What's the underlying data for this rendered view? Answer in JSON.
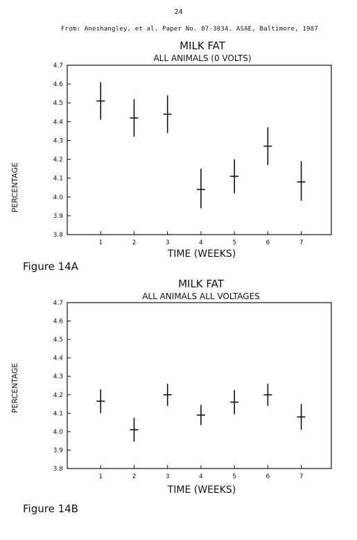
{
  "page": {
    "number": "24",
    "source": "From: Aneshangley, et al. Paper No. 87-3034. ASAE, Baltimore, 1987"
  },
  "chart_data": [
    {
      "type": "scatter",
      "title": "MILK FAT",
      "subtitle": "ALL ANIMALS (0 VOLTS)",
      "xlabel": "TIME (WEEKS)",
      "ylabel": "PERCENTAGE",
      "caption": "Figure 14A",
      "ylim": [
        3.8,
        4.7
      ],
      "xlim": [
        0,
        7.9
      ],
      "yticks": [
        "3.8",
        "3.9",
        "4.0",
        "4.1",
        "4.2",
        "4.3",
        "4.4",
        "4.5",
        "4.6",
        "4.7"
      ],
      "xticks": [
        "1",
        "2",
        "3",
        "4",
        "5",
        "6",
        "7"
      ],
      "grid": false,
      "points": [
        {
          "x": 1,
          "y": 4.51,
          "low": 4.41,
          "high": 4.61
        },
        {
          "x": 2,
          "y": 4.42,
          "low": 4.32,
          "high": 4.52
        },
        {
          "x": 3,
          "y": 4.44,
          "low": 4.34,
          "high": 4.54
        },
        {
          "x": 4,
          "y": 4.04,
          "low": 3.94,
          "high": 4.15
        },
        {
          "x": 5,
          "y": 4.11,
          "low": 4.02,
          "high": 4.2
        },
        {
          "x": 6,
          "y": 4.27,
          "low": 4.17,
          "high": 4.37
        },
        {
          "x": 7,
          "y": 4.08,
          "low": 3.98,
          "high": 4.19
        }
      ]
    },
    {
      "type": "scatter",
      "title": "MILK FAT",
      "subtitle": "ALL ANIMALS ALL VOLTAGES",
      "xlabel": "TIME (WEEKS)",
      "ylabel": "PERCENTAGE",
      "caption": "Figure 14B",
      "ylim": [
        3.8,
        4.7
      ],
      "xlim": [
        0,
        7.9
      ],
      "yticks": [
        "3.8",
        "3.9",
        "4.0",
        "4.1",
        "4.2",
        "4.3",
        "4.4",
        "4.5",
        "4.6",
        "4.7"
      ],
      "xticks": [
        "1",
        "2",
        "3",
        "4",
        "5",
        "6",
        "7"
      ],
      "grid": false,
      "points": [
        {
          "x": 1,
          "y": 4.165,
          "low": 4.1,
          "high": 4.23
        },
        {
          "x": 2,
          "y": 4.01,
          "low": 3.945,
          "high": 4.075
        },
        {
          "x": 3,
          "y": 4.2,
          "low": 4.14,
          "high": 4.26
        },
        {
          "x": 4,
          "y": 4.09,
          "low": 4.035,
          "high": 4.145
        },
        {
          "x": 5,
          "y": 4.16,
          "low": 4.095,
          "high": 4.225
        },
        {
          "x": 6,
          "y": 4.2,
          "low": 4.14,
          "high": 4.26
        },
        {
          "x": 7,
          "y": 4.08,
          "low": 4.01,
          "high": 4.15
        }
      ]
    }
  ]
}
